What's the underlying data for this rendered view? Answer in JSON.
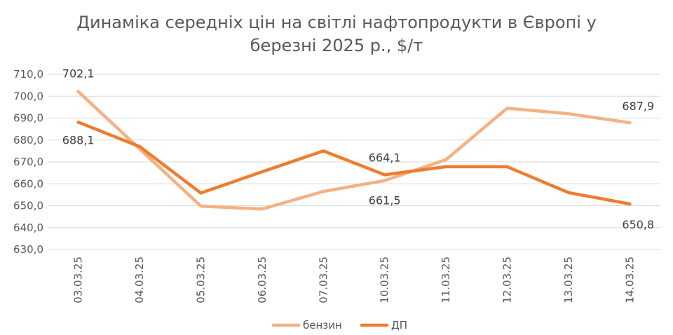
{
  "chart_data": {
    "type": "line",
    "title": "Динаміка середніх цін на світлі нафтопродукти в Європі у березні 2025 р., $/т",
    "title_lines": [
      "Динаміка середніх цін на світлі нафтопродукти в Європі у",
      "березні 2025 р., $/т"
    ],
    "categories": [
      "03.03.25",
      "04.03.25",
      "05.03.25",
      "06.03.25",
      "07.03.25",
      "10.03.25",
      "11.03.25",
      "12.03.25",
      "13.03.25",
      "14.03.25"
    ],
    "ylim": [
      630,
      710
    ],
    "yticks": [
      "710,0",
      "700,0",
      "690,0",
      "680,0",
      "670,0",
      "660,0",
      "650,0",
      "640,0",
      "630,0"
    ],
    "grid": true,
    "legend_position": "bottom",
    "series": [
      {
        "name": "бензин",
        "color": "#F4B183",
        "values": [
          702.1,
          676.0,
          649.8,
          648.5,
          656.5,
          661.5,
          671.0,
          694.5,
          692.0,
          687.9
        ]
      },
      {
        "name": "ДП",
        "color": "#ED7D31",
        "values": [
          688.1,
          677.0,
          655.8,
          665.5,
          675.0,
          664.1,
          667.8,
          667.8,
          656.0,
          650.8
        ]
      }
    ],
    "data_labels": [
      {
        "series": 0,
        "index": 0,
        "text": "702,1"
      },
      {
        "series": 1,
        "index": 0,
        "text": "688,1"
      },
      {
        "series": 1,
        "index": 5,
        "text": "664,1"
      },
      {
        "series": 0,
        "index": 5,
        "text": "661,5"
      },
      {
        "series": 0,
        "index": 9,
        "text": "687,9"
      },
      {
        "series": 1,
        "index": 9,
        "text": "650,8"
      }
    ]
  }
}
